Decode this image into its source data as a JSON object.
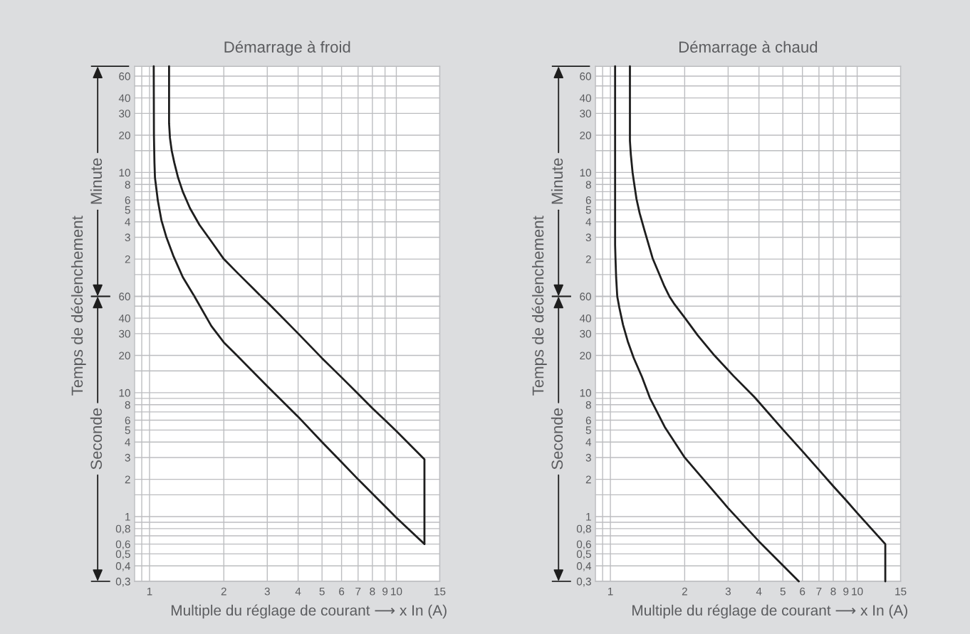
{
  "chart_data": [
    {
      "type": "line",
      "title": "Démarrage à froid",
      "ylabel": "Minute",
      "annotations": [
        "Temps de déclenchement"
      ],
      "log": "xy",
      "grid": true,
      "tick_labels": "y",
      "xlim": [
        0.87,
        15
      ],
      "xticks": [
        1,
        2,
        3,
        4,
        5,
        6,
        7,
        8,
        9,
        10,
        15
      ],
      "ref_lines": [
        {
          "axis": "x",
          "value": 0.93,
          "color": "#bcbdc0",
          "line_style": "solid"
        }
      ],
      "ylim": [
        1,
        72
      ],
      "yticks": [
        {
          "value": 1.5,
          "label": null
        },
        2,
        3,
        4,
        5,
        6,
        {
          "value": 7,
          "label": null
        },
        8,
        {
          "value": 9,
          "label": null
        },
        10,
        {
          "value": 15,
          "label": null
        },
        20,
        30,
        40,
        {
          "value": 50,
          "label": null
        },
        60
      ],
      "series": [
        {
          "color": "#1e1e1e",
          "x": [
            1.04,
            1.042,
            1.047,
            1.052,
            1.081,
            1.117,
            1.168,
            1.248,
            1.364,
            1.52
          ],
          "values": [
            72,
            20,
            12,
            9.1,
            5.9,
            4.13,
            3.04,
            2.13,
            1.43,
            1.0
          ]
        },
        {
          "color": "#1e1e1e",
          "x": [
            1.2,
            1.2,
            1.21,
            1.23,
            1.26,
            1.305,
            1.364,
            1.458,
            1.593,
            1.78,
            2.0,
            2.27,
            2.65,
            2.83
          ],
          "values": [
            72,
            25,
            19,
            15,
            12,
            9.1,
            7.0,
            5.16,
            3.78,
            2.78,
            2.0,
            1.55,
            1.14,
            1.0
          ]
        }
      ]
    },
    {
      "type": "line",
      "xlabel": "Multiple du réglage de courant ⟶ x In (A)",
      "ylabel": "Seconde",
      "log": "xy",
      "grid": true,
      "xlim": [
        0.87,
        15
      ],
      "xticks": [
        1,
        2,
        3,
        4,
        5,
        6,
        7,
        8,
        9,
        10,
        15
      ],
      "ref_lines": [
        {
          "axis": "x",
          "value": 0.93,
          "color": "#bcbdc0",
          "line_style": "solid"
        }
      ],
      "ylim": [
        0.3,
        60
      ],
      "yticks": [
        {
          "value": 0.3,
          "label": "0,3"
        },
        {
          "value": 0.4,
          "label": "0,4"
        },
        {
          "value": 0.5,
          "label": "0,5"
        },
        {
          "value": 0.6,
          "label": "0,6"
        },
        {
          "value": 0.7,
          "label": null
        },
        {
          "value": 0.8,
          "label": "0,8"
        },
        {
          "value": 0.9,
          "label": null
        },
        1,
        {
          "value": 1.5,
          "label": null
        },
        2,
        3,
        4,
        5,
        6,
        {
          "value": 7,
          "label": null
        },
        8,
        {
          "value": 9,
          "label": null
        },
        10,
        {
          "value": 15,
          "label": null
        },
        20,
        30,
        40,
        {
          "value": 50,
          "label": null
        },
        60
      ],
      "series": [
        {
          "color": "#1e1e1e",
          "x": [
            1.52,
            1.78,
            2.0,
            2.26,
            3,
            4,
            5,
            6,
            7,
            8,
            9,
            10,
            13
          ],
          "values": [
            60,
            34.6,
            25.5,
            20,
            11.3,
            6.4,
            4.0,
            2.75,
            2.0,
            1.53,
            1.21,
            0.98,
            0.6
          ]
        },
        {
          "color": "#1e1e1e",
          "x": [
            2.83,
            3,
            4,
            5,
            6,
            7,
            8,
            9,
            10,
            13,
            13
          ],
          "values": [
            60,
            53.8,
            30.1,
            19,
            13.3,
            9.8,
            7.5,
            6.0,
            4.9,
            2.9,
            0.6
          ]
        }
      ]
    },
    {
      "type": "line",
      "title": "Démarrage à chaud",
      "ylabel": "Minute",
      "annotations": [
        "Temps de déclenchement"
      ],
      "log": "xy",
      "grid": true,
      "tick_labels": "y",
      "xlim": [
        0.87,
        15
      ],
      "xticks": [
        1,
        2,
        3,
        4,
        5,
        6,
        7,
        8,
        9,
        10,
        15
      ],
      "ref_lines": [
        {
          "axis": "x",
          "value": 0.93,
          "color": "#bcbdc0",
          "line_style": "solid"
        }
      ],
      "ylim": [
        1,
        72
      ],
      "yticks": [
        {
          "value": 1.5,
          "label": null
        },
        2,
        3,
        4,
        5,
        6,
        {
          "value": 7,
          "label": null
        },
        8,
        {
          "value": 9,
          "label": null
        },
        10,
        {
          "value": 15,
          "label": null
        },
        20,
        30,
        40,
        {
          "value": 50,
          "label": null
        },
        60
      ],
      "series": [
        {
          "color": "#1e1e1e",
          "x": [
            1.045,
            1.045,
            1.049,
            1.055,
            1.066
          ],
          "values": [
            72,
            2.6,
            2.0,
            1.43,
            1.0
          ]
        },
        {
          "color": "#1e1e1e",
          "x": [
            1.2,
            1.2,
            1.21,
            1.23,
            1.25,
            1.276,
            1.314,
            1.373,
            1.483,
            1.657,
            1.733
          ],
          "values": [
            72,
            18,
            14,
            10,
            8.0,
            6.1,
            4.69,
            3.44,
            2.03,
            1.2,
            1.0
          ]
        }
      ]
    },
    {
      "type": "line",
      "xlabel": "Multiple du réglage de courant ⟶ x In (A)",
      "ylabel": "Seconde",
      "log": "xy",
      "grid": true,
      "xlim": [
        0.87,
        15
      ],
      "xticks": [
        1,
        2,
        3,
        4,
        5,
        6,
        7,
        8,
        9,
        10,
        15
      ],
      "ref_lines": [
        {
          "axis": "x",
          "value": 0.93,
          "color": "#bcbdc0",
          "line_style": "solid"
        }
      ],
      "ylim": [
        0.3,
        60
      ],
      "yticks": [
        {
          "value": 0.3,
          "label": "0,3"
        },
        {
          "value": 0.4,
          "label": "0,4"
        },
        {
          "value": 0.5,
          "label": "0,5"
        },
        {
          "value": 0.6,
          "label": "0,6"
        },
        {
          "value": 0.7,
          "label": null
        },
        {
          "value": 0.8,
          "label": "0,8"
        },
        {
          "value": 0.9,
          "label": null
        },
        1,
        {
          "value": 1.5,
          "label": null
        },
        2,
        3,
        4,
        5,
        6,
        {
          "value": 7,
          "label": null
        },
        8,
        {
          "value": 9,
          "label": null
        },
        10,
        {
          "value": 15,
          "label": null
        },
        20,
        30,
        40,
        {
          "value": 50,
          "label": null
        },
        60
      ],
      "series": [
        {
          "color": "#1e1e1e",
          "x": [
            1.066,
            1.088,
            1.125,
            1.176,
            1.243,
            1.343,
            1.445,
            1.66,
            2.0,
            2.42,
            3,
            4,
            5.8
          ],
          "values": [
            60,
            48.2,
            35.4,
            26,
            19.1,
            13.4,
            9.1,
            5.3,
            3.0,
            1.93,
            1.17,
            0.63,
            0.3
          ]
        },
        {
          "color": "#1e1e1e",
          "x": [
            1.733,
            1.81,
            2.0,
            2.26,
            2.64,
            3.15,
            3.84,
            5,
            6,
            7,
            8,
            9,
            10,
            13,
            13
          ],
          "values": [
            60,
            52.5,
            40.4,
            29,
            20,
            13.7,
            9.2,
            5.05,
            3.37,
            2.38,
            1.76,
            1.36,
            1.07,
            0.6,
            0.3
          ]
        }
      ]
    }
  ]
}
